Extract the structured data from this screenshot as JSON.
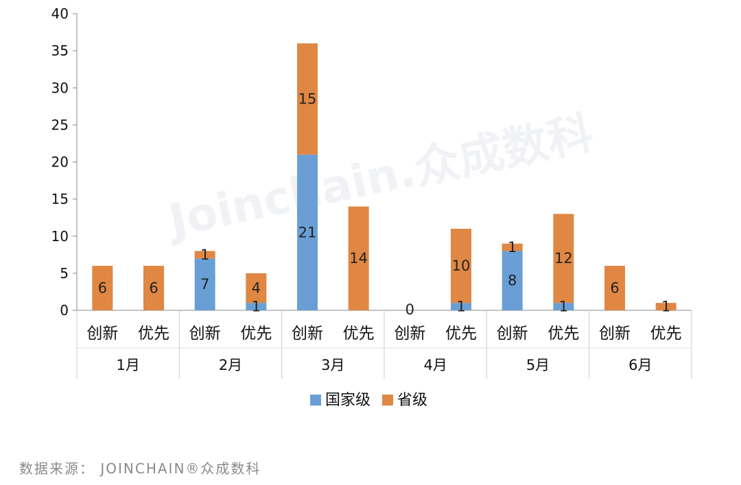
{
  "chart_data": {
    "type": "bar",
    "stacked": true,
    "groups": [
      "1月",
      "2月",
      "3月",
      "4月",
      "5月",
      "6月"
    ],
    "categories": [
      "创新",
      "优先",
      "创新",
      "优先",
      "创新",
      "优先",
      "创新",
      "优先",
      "创新",
      "优先",
      "创新",
      "优先"
    ],
    "series": [
      {
        "name": "国家级",
        "color": "#6a9fd6",
        "values": [
          0,
          0,
          7,
          1,
          21,
          0,
          0,
          1,
          8,
          1,
          0,
          0
        ]
      },
      {
        "name": "省级",
        "color": "#e08743",
        "values": [
          6,
          6,
          1,
          4,
          15,
          14,
          0,
          10,
          1,
          12,
          6,
          1
        ]
      }
    ],
    "data_labels": [
      {
        "index": 0,
        "series": 1,
        "text": "6"
      },
      {
        "index": 1,
        "series": 1,
        "text": "6"
      },
      {
        "index": 2,
        "series": 0,
        "text": "7"
      },
      {
        "index": 2,
        "series": 1,
        "text": "1"
      },
      {
        "index": 3,
        "series": 0,
        "text": "1"
      },
      {
        "index": 3,
        "series": 1,
        "text": "4"
      },
      {
        "index": 4,
        "series": 0,
        "text": "21"
      },
      {
        "index": 4,
        "series": 1,
        "text": "15"
      },
      {
        "index": 5,
        "series": 1,
        "text": "14"
      },
      {
        "index": 6,
        "series": 1,
        "text": "0"
      },
      {
        "index": 7,
        "series": 0,
        "text": "1"
      },
      {
        "index": 7,
        "series": 1,
        "text": "10"
      },
      {
        "index": 8,
        "series": 0,
        "text": "8"
      },
      {
        "index": 8,
        "series": 1,
        "text": "1"
      },
      {
        "index": 9,
        "series": 0,
        "text": "1"
      },
      {
        "index": 9,
        "series": 1,
        "text": "12"
      },
      {
        "index": 10,
        "series": 1,
        "text": "6"
      },
      {
        "index": 11,
        "series": 1,
        "text": "1"
      }
    ],
    "y_ticks": [
      "0",
      "5",
      "10",
      "15",
      "20",
      "25",
      "30",
      "35",
      "40"
    ],
    "ylim": [
      0,
      40
    ],
    "grid": false,
    "legend_position": "bottom",
    "title": "",
    "xlabel": "",
    "ylabel": ""
  },
  "watermark": "Joinchain.众成数科",
  "source_text": "数据来源： JOINCHAIN®众成数科"
}
